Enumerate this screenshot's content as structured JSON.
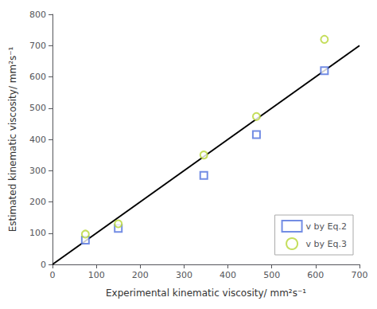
{
  "chart_data": {
    "type": "scatter",
    "xlabel": "Experimental kinematic viscosity/ mm²s⁻¹",
    "ylabel": "Estimated kinematic viscosity/ mm²s⁻¹",
    "xlim": [
      0,
      700
    ],
    "ylim": [
      0,
      800
    ],
    "xticks": [
      0,
      100,
      200,
      300,
      400,
      500,
      600,
      700
    ],
    "yticks": [
      0,
      100,
      200,
      300,
      400,
      500,
      600,
      700,
      800
    ],
    "grid": false,
    "legend": "lower right",
    "series": [
      {
        "type": "line",
        "x": [
          0,
          700
        ],
        "values": [
          0,
          700
        ],
        "color": "#000000"
      },
      {
        "type": "scatter",
        "name": "v by Eq.2",
        "marker": "square",
        "x": [
          75,
          150,
          345,
          465,
          620
        ],
        "values": [
          78,
          115,
          285,
          415,
          620
        ]
      },
      {
        "type": "scatter",
        "name": "v by Eq.3",
        "marker": "circle",
        "x": [
          75,
          150,
          345,
          465,
          620
        ],
        "values": [
          97,
          130,
          350,
          473,
          720
        ]
      }
    ]
  }
}
